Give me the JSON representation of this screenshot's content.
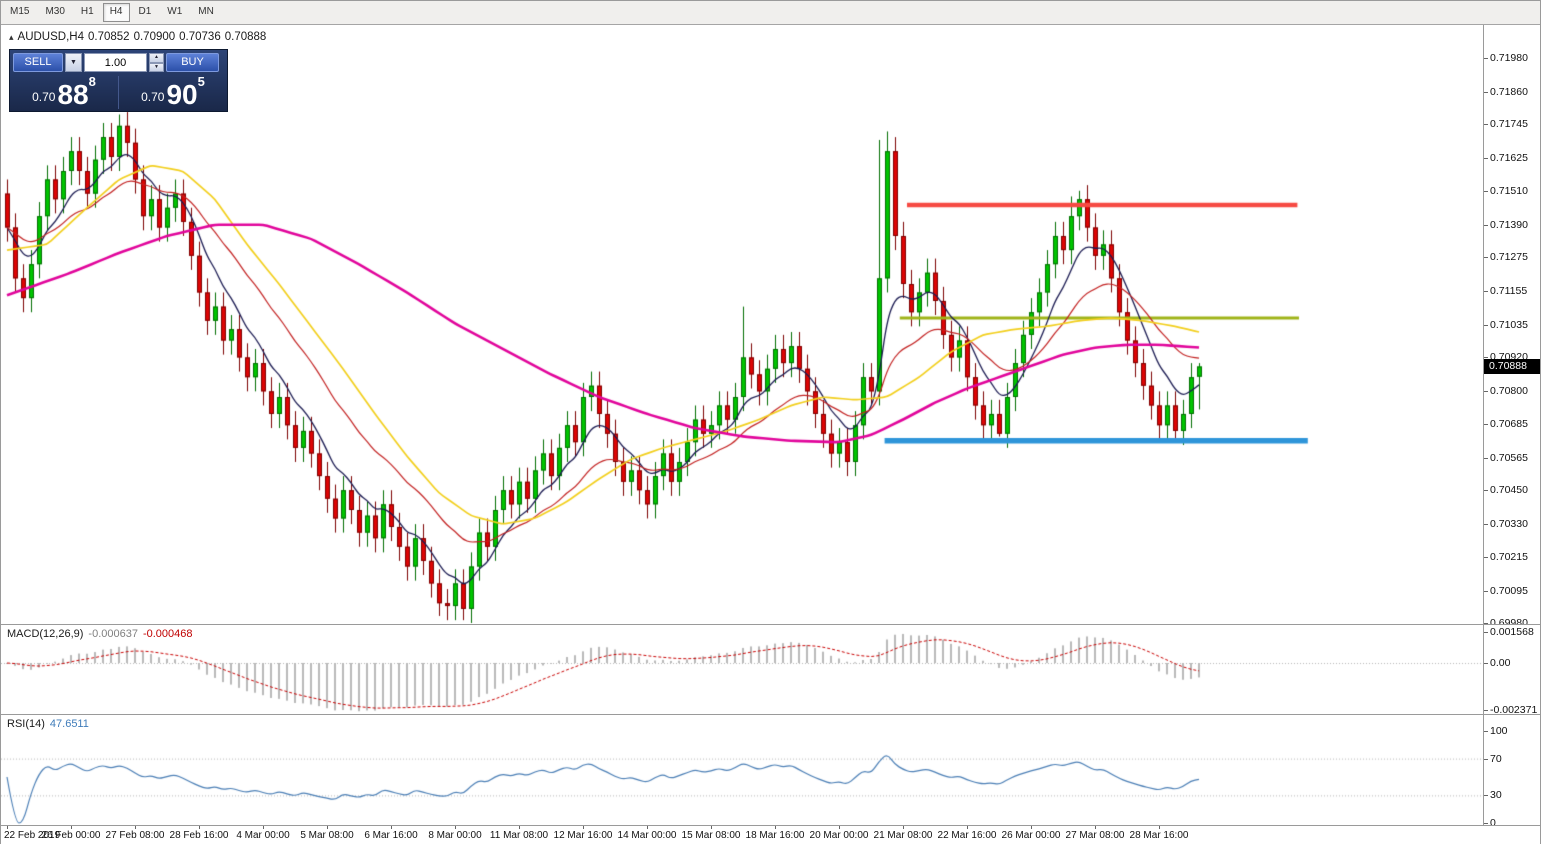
{
  "icons": {
    "collapse": "▴",
    "dropdown": "▼",
    "spin_up": "▲",
    "spin_down": "▼"
  },
  "toolbar": {
    "timeframes": [
      {
        "label": "M15",
        "active": false
      },
      {
        "label": "M30",
        "active": false
      },
      {
        "label": "H1",
        "active": false
      },
      {
        "label": "H4",
        "active": true
      },
      {
        "label": "D1",
        "active": false
      },
      {
        "label": "W1",
        "active": false
      },
      {
        "label": "MN",
        "active": false
      }
    ]
  },
  "chart_header": {
    "symbol": "AUDUSD,H4",
    "open": "0.70852",
    "high": "0.70900",
    "low": "0.70736",
    "close": "0.70888"
  },
  "quote_panel": {
    "sell_label": "SELL",
    "buy_label": "BUY",
    "volume": "1.00",
    "sell_price": {
      "prefix": "0.70",
      "big": "88",
      "sup": "8"
    },
    "buy_price": {
      "prefix": "0.70",
      "big": "90",
      "sup": "5"
    }
  },
  "price_axis": {
    "labels": [
      "0.71980",
      "0.71860",
      "0.71745",
      "0.71625",
      "0.71510",
      "0.71390",
      "0.71275",
      "0.71155",
      "0.71035",
      "0.70920",
      "0.70800",
      "0.70685",
      "0.70565",
      "0.70450",
      "0.70330",
      "0.70215",
      "0.70095",
      "0.69980"
    ],
    "current": "0.70888"
  },
  "macd_panel": {
    "label": "MACD(12,26,9)",
    "value_main": "-0.000637",
    "value_signal": "-0.000468",
    "axis": [
      "0.001568",
      "0.00",
      "-0.002371"
    ]
  },
  "rsi_panel": {
    "label": "RSI(14)",
    "value": "47.6511",
    "axis": [
      "100",
      "70",
      "30",
      "0"
    ]
  },
  "time_axis": {
    "labels": [
      {
        "label": "22 Feb 2019",
        "bar": 0
      },
      {
        "label": "26 Feb 00:00",
        "bar": 8
      },
      {
        "label": "27 Feb 08:00",
        "bar": 16
      },
      {
        "label": "28 Feb 16:00",
        "bar": 24
      },
      {
        "label": "4 Mar 00:00",
        "bar": 32
      },
      {
        "label": "5 Mar 08:00",
        "bar": 40
      },
      {
        "label": "6 Mar 16:00",
        "bar": 48
      },
      {
        "label": "8 Mar 00:00",
        "bar": 56
      },
      {
        "label": "11 Mar 08:00",
        "bar": 64
      },
      {
        "label": "12 Mar 16:00",
        "bar": 72
      },
      {
        "label": "14 Mar 00:00",
        "bar": 80
      },
      {
        "label": "15 Mar 08:00",
        "bar": 88
      },
      {
        "label": "18 Mar 16:00",
        "bar": 96
      },
      {
        "label": "20 Mar 00:00",
        "bar": 104
      },
      {
        "label": "21 Mar 08:00",
        "bar": 112
      },
      {
        "label": "22 Mar 16:00",
        "bar": 120
      },
      {
        "label": "26 Mar 00:00",
        "bar": 128
      },
      {
        "label": "27 Mar 08:00",
        "bar": 136
      },
      {
        "label": "28 Mar 16:00",
        "bar": 144
      }
    ]
  },
  "chart_data": {
    "type": "candlestick",
    "symbol": "AUDUSD",
    "timeframe": "H4",
    "price_max": 0.7198,
    "price_min": 0.6998,
    "first_open": 0.715,
    "default_wick": 0.0005,
    "closes": [
      0.7138,
      0.712,
      0.7113,
      0.7125,
      0.7142,
      0.7155,
      0.7148,
      0.7158,
      0.7165,
      0.7158,
      0.715,
      0.7162,
      0.717,
      0.7163,
      0.7174,
      0.7168,
      0.7155,
      0.7142,
      0.7148,
      0.7138,
      0.7145,
      0.715,
      0.714,
      0.7128,
      0.7115,
      0.7105,
      0.711,
      0.7098,
      0.7102,
      0.7092,
      0.7085,
      0.709,
      0.708,
      0.7072,
      0.7078,
      0.7068,
      0.706,
      0.7066,
      0.7058,
      0.705,
      0.7042,
      0.7035,
      0.7045,
      0.7038,
      0.703,
      0.7036,
      0.7028,
      0.704,
      0.7032,
      0.7025,
      0.7018,
      0.7028,
      0.702,
      0.7012,
      0.7005,
      0.7004,
      0.7012,
      0.7003,
      0.7018,
      0.703,
      0.7025,
      0.7038,
      0.7045,
      0.704,
      0.7048,
      0.7042,
      0.7052,
      0.7058,
      0.705,
      0.706,
      0.7068,
      0.7062,
      0.7078,
      0.7082,
      0.7072,
      0.7065,
      0.7055,
      0.7048,
      0.7052,
      0.7045,
      0.704,
      0.705,
      0.7058,
      0.7048,
      0.7055,
      0.7062,
      0.707,
      0.7065,
      0.7068,
      0.7075,
      0.707,
      0.7078,
      0.7092,
      0.7086,
      0.708,
      0.7088,
      0.7095,
      0.709,
      0.7096,
      0.7088,
      0.708,
      0.7072,
      0.7065,
      0.7058,
      0.7062,
      0.7055,
      0.7068,
      0.7085,
      0.708,
      0.712,
      0.7165,
      0.7135,
      0.7118,
      0.7108,
      0.7115,
      0.7122,
      0.7112,
      0.71,
      0.7092,
      0.7098,
      0.7085,
      0.7075,
      0.7068,
      0.7072,
      0.7065,
      0.7078,
      0.709,
      0.71,
      0.7108,
      0.7115,
      0.7125,
      0.7135,
      0.713,
      0.7142,
      0.7148,
      0.7138,
      0.7128,
      0.7132,
      0.712,
      0.7108,
      0.7098,
      0.709,
      0.7082,
      0.7075,
      0.7068,
      0.7075,
      0.7066,
      0.7072,
      0.7085,
      0.70888
    ],
    "open_overrides": {
      "149": 0.70852
    },
    "wick_overrides": {
      "14": {
        "h": 0.7178
      },
      "54": {
        "l": 0.70005
      },
      "57": {
        "l": 0.6999
      },
      "92": {
        "h": 0.711
      },
      "109": {
        "h": 0.7169
      },
      "110": {
        "h": 0.7172
      },
      "124": {
        "l": 0.7064
      },
      "133": {
        "h": 0.7149
      },
      "134": {
        "h": 0.7151
      },
      "146": {
        "l": 0.7063
      },
      "149": {
        "h": 0.709,
        "l": 0.70736
      }
    },
    "levels": [
      {
        "name": "resistance-line",
        "color": "#f64a43",
        "price": 0.7146,
        "bar_start": 112.5,
        "bar_end": 161.3,
        "width": 4.5
      },
      {
        "name": "mid-line",
        "color": "#9fb419",
        "price": 0.7106,
        "bar_start": 111.6,
        "bar_end": 161.5,
        "width": 3
      },
      {
        "name": "support-line",
        "color": "#2e95d9",
        "price": 0.70625,
        "bar_start": 109.7,
        "bar_end": 162.6,
        "width": 5.5
      }
    ],
    "overlays": [
      {
        "name": "ma-fast-dark",
        "type": "ema",
        "period": 7,
        "color": "#1b1b52",
        "width": 1.3
      },
      {
        "name": "ma-medium-red",
        "type": "ema",
        "period": 18,
        "color": "#c22020",
        "width": 1.2
      },
      {
        "name": "ma-slow-yellow",
        "type": "points",
        "color": "#f2cf1d",
        "width": 1.7,
        "points": [
          [
            0,
            0.713
          ],
          [
            5,
            0.7132
          ],
          [
            10,
            0.7145
          ],
          [
            14,
            0.7155
          ],
          [
            18,
            0.716
          ],
          [
            22,
            0.7158
          ],
          [
            26,
            0.7148
          ],
          [
            30,
            0.7132
          ],
          [
            34,
            0.7118
          ],
          [
            38,
            0.7103
          ],
          [
            42,
            0.7088
          ],
          [
            46,
            0.7072
          ],
          [
            50,
            0.7057
          ],
          [
            54,
            0.7044
          ],
          [
            58,
            0.7036
          ],
          [
            62,
            0.7033
          ],
          [
            66,
            0.7035
          ],
          [
            70,
            0.7041
          ],
          [
            74,
            0.7049
          ],
          [
            78,
            0.7056
          ],
          [
            82,
            0.706
          ],
          [
            86,
            0.7063
          ],
          [
            90,
            0.7066
          ],
          [
            94,
            0.707
          ],
          [
            98,
            0.7075
          ],
          [
            102,
            0.7078
          ],
          [
            106,
            0.7077
          ],
          [
            110,
            0.7078
          ],
          [
            114,
            0.7085
          ],
          [
            118,
            0.7094
          ],
          [
            122,
            0.71
          ],
          [
            126,
            0.7102
          ],
          [
            130,
            0.7103
          ],
          [
            134,
            0.7105
          ],
          [
            138,
            0.7106
          ],
          [
            142,
            0.7105
          ],
          [
            146,
            0.7103
          ],
          [
            149,
            0.7101
          ]
        ]
      },
      {
        "name": "ma-long-magenta",
        "type": "points",
        "color": "#e1059b",
        "width": 2.6,
        "points": [
          [
            0,
            0.7114
          ],
          [
            8,
            0.7122
          ],
          [
            14,
            0.7129
          ],
          [
            20,
            0.7135
          ],
          [
            26,
            0.7139
          ],
          [
            32,
            0.7139
          ],
          [
            38,
            0.7134
          ],
          [
            44,
            0.7125
          ],
          [
            50,
            0.7115
          ],
          [
            56,
            0.7104
          ],
          [
            62,
            0.7095
          ],
          [
            68,
            0.7086
          ],
          [
            74,
            0.7078
          ],
          [
            80,
            0.7072
          ],
          [
            86,
            0.7067
          ],
          [
            92,
            0.7064
          ],
          [
            98,
            0.70625
          ],
          [
            104,
            0.7062
          ],
          [
            108,
            0.70645
          ],
          [
            112,
            0.707
          ],
          [
            116,
            0.7076
          ],
          [
            120,
            0.7081
          ],
          [
            124,
            0.7085
          ],
          [
            128,
            0.7089
          ],
          [
            132,
            0.7093
          ],
          [
            136,
            0.70955
          ],
          [
            140,
            0.70965
          ],
          [
            144,
            0.70965
          ],
          [
            149,
            0.70955
          ]
        ]
      }
    ],
    "macd": {
      "fast": 12,
      "slow": 26,
      "signal": 9,
      "axis_values": [
        0.001568,
        0,
        -0.002371
      ]
    },
    "rsi": {
      "period": 14,
      "levels": [
        70,
        30
      ]
    }
  },
  "colors": {
    "bull": "#00c400",
    "bull_edge": "#006e00",
    "bear": "#dd0505",
    "bear_edge": "#7c0000",
    "macd_hist": "#b9b9b9",
    "macd_signal": "#c80000",
    "rsi_line": "#4a7eb5",
    "grid_dotted": "#b5b5b5",
    "badge_bg": "#000000",
    "badge_text": "#ffffff"
  }
}
